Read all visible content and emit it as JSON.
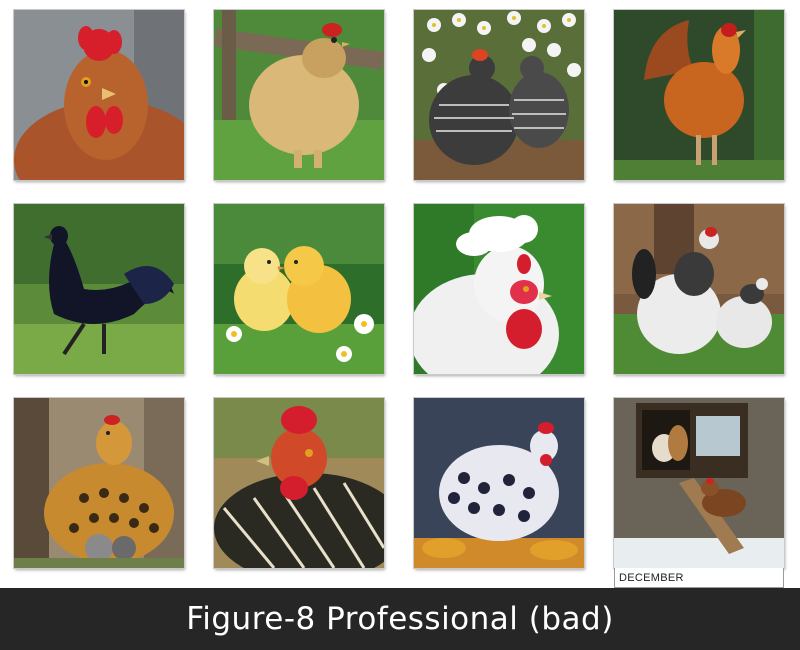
{
  "calendar": {
    "month_label": "DECEMBER"
  },
  "caption": {
    "text": "Figure-8 Professional (bad)"
  },
  "colors": {
    "caption_background": "#262626",
    "caption_text": "#ffffff",
    "page_background": "#ffffff"
  }
}
